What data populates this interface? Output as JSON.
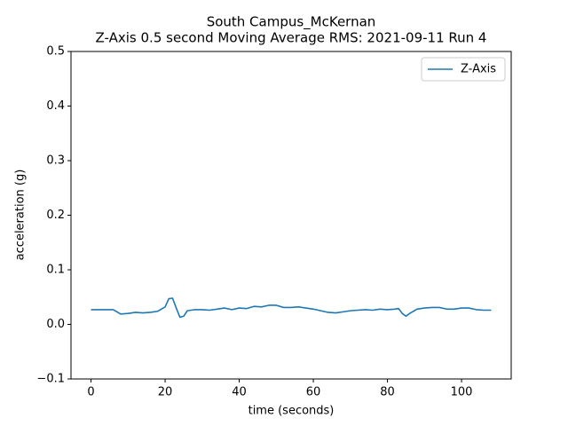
{
  "chart_data": {
    "type": "line",
    "title": "South Campus_McKernan",
    "subtitle": "Z-Axis 0.5 second Moving Average RMS: 2021-09-11 Run 4",
    "x_label": "time (seconds)",
    "y_label": "acceleration (g)",
    "x": [
      0,
      2,
      4,
      6,
      8,
      10,
      12,
      14,
      16,
      18,
      20,
      21,
      22,
      23,
      24,
      25,
      26,
      28,
      30,
      32,
      34,
      36,
      38,
      40,
      42,
      44,
      46,
      48,
      50,
      52,
      54,
      56,
      58,
      60,
      62,
      64,
      66,
      68,
      70,
      72,
      74,
      76,
      78,
      80,
      82,
      83,
      84,
      85,
      86,
      88,
      90,
      92,
      94,
      96,
      98,
      100,
      102,
      104,
      106,
      108
    ],
    "series": [
      {
        "name": "Z-Axis",
        "color": "#1f77b4",
        "values": [
          0.027,
          0.027,
          0.027,
          0.027,
          0.019,
          0.02,
          0.022,
          0.021,
          0.022,
          0.024,
          0.032,
          0.047,
          0.048,
          0.03,
          0.013,
          0.015,
          0.025,
          0.027,
          0.027,
          0.026,
          0.028,
          0.03,
          0.027,
          0.03,
          0.029,
          0.033,
          0.032,
          0.035,
          0.035,
          0.031,
          0.031,
          0.032,
          0.03,
          0.028,
          0.025,
          0.022,
          0.021,
          0.023,
          0.025,
          0.026,
          0.027,
          0.026,
          0.028,
          0.027,
          0.028,
          0.029,
          0.02,
          0.015,
          0.02,
          0.028,
          0.03,
          0.031,
          0.031,
          0.028,
          0.028,
          0.03,
          0.03,
          0.027,
          0.026,
          0.026
        ]
      }
    ],
    "xlim": [
      -5.4,
      113.4
    ],
    "xticks": [
      0,
      20,
      40,
      60,
      80,
      100
    ],
    "ylim": [
      -0.1,
      0.5
    ],
    "yticks": [
      {
        "value": -0.1,
        "label": "−0.1"
      },
      {
        "value": 0,
        "label": "0.0"
      },
      0.1,
      0.2,
      0.3,
      0.4,
      0.5
    ],
    "legend": "upper right"
  }
}
